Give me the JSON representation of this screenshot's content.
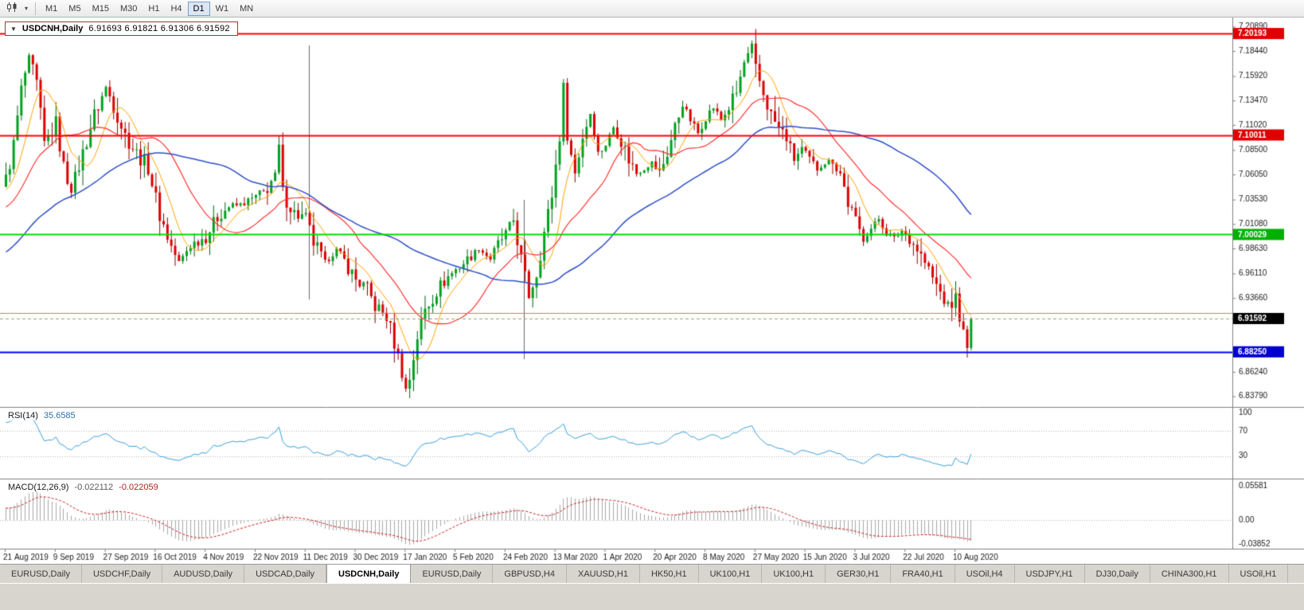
{
  "toolbar": {
    "chart_type_icon": "candlestick-chart-icon",
    "dropdown_caret": "▾",
    "timeframes": [
      "M1",
      "M5",
      "M15",
      "M30",
      "H1",
      "H4",
      "D1",
      "W1",
      "MN"
    ],
    "active_timeframe": "D1"
  },
  "symbol_box": {
    "caret": "▼",
    "title": "USDCNH,Daily",
    "ohlc": "6.91693 6.91821 6.91306 6.91592"
  },
  "rsi": {
    "label": "RSI(14)",
    "value": "35.6585",
    "period": 14,
    "line_color": "#3AA0DC",
    "level_labels": [
      "100",
      "70",
      "30"
    ],
    "levels": [
      70,
      30
    ],
    "range": [
      0,
      100
    ]
  },
  "macd": {
    "label": "MACD(12,26,9)",
    "value_main": "-0.022112",
    "value_signal": "-0.022059",
    "fast": 12,
    "slow": 26,
    "signal": 9,
    "histogram_color": "#A8A8A8",
    "signal_color": "#CC2222",
    "scale": {
      "top": "0.05581",
      "zero": "0.00",
      "bottom": "-0.03852",
      "max": 0.05581,
      "min": -0.03852
    }
  },
  "time_axis": {
    "labels": [
      "21 Aug 2019",
      "9 Sep 2019",
      "27 Sep 2019",
      "16 Oct 2019",
      "4 Nov 2019",
      "22 Nov 2019",
      "11 Dec 2019",
      "30 Dec 2019",
      "17 Jan 2020",
      "5 Feb 2020",
      "24 Feb 2020",
      "13 Mar 2020",
      "1 Apr 2020",
      "20 Apr 2020",
      "8 May 2020",
      "27 May 2020",
      "15 Jun 2020",
      "3 Jul 2020",
      "22 Jul 2020",
      "10 Aug 2020"
    ],
    "candles_per_label": 13
  },
  "tabs": {
    "items": [
      "EURUSD,Daily",
      "USDCHF,Daily",
      "AUDUSD,Daily",
      "USDCAD,Daily",
      "USDCNH,Daily",
      "EURUSD,Daily",
      "GBPUSD,H4",
      "XAUUSD,H1",
      "HK50,H1",
      "UK100,H1",
      "UK100,H1",
      "GER30,H1",
      "FRA40,H1",
      "USOil,H4",
      "USDJPY,H1",
      "DJ30,Daily",
      "CHINA300,H1",
      "USOil,H1"
    ],
    "active_index": 4
  },
  "chart_data": {
    "type": "candlestick",
    "symbol": "USDCNH",
    "timeframe": "Daily",
    "ohlc_display": {
      "open": "6.91693",
      "high": "6.91821",
      "low": "6.91306",
      "close": "6.91592"
    },
    "price_scale": {
      "min": 6.828,
      "max": 7.218,
      "ticks": [
        "7.20890",
        "7.18440",
        "7.15920",
        "7.13470",
        "7.11020",
        "7.08500",
        "7.06050",
        "7.03530",
        "7.01080",
        "6.98630",
        "6.96110",
        "6.93660",
        "6.86240",
        "6.83790"
      ]
    },
    "hlines": [
      {
        "price": 7.20193,
        "color": "#FF0000",
        "width": 2,
        "badge": "7.20193",
        "badge_bg": "#E00000"
      },
      {
        "price": 7.10011,
        "color": "#FF0000",
        "width": 2,
        "badge": "7.10011",
        "badge_bg": "#E00000"
      },
      {
        "price": 7.00029,
        "color": "#00DD00",
        "width": 2,
        "badge": "7.00029",
        "badge_bg": "#00B000"
      },
      {
        "price": 6.9216,
        "color": "#C8873C",
        "width": 1,
        "badge": null,
        "badge_bg": null
      },
      {
        "price": 6.8825,
        "color": "#0000FF",
        "width": 2,
        "badge": "6.88250",
        "badge_bg": "#0000D0"
      }
    ],
    "current_price": {
      "value": 6.91592,
      "badge": "6.91592",
      "badge_bg": "#000000"
    },
    "vlines": [
      {
        "index": 79,
        "from": 7.19,
        "to": 6.935
      },
      {
        "index": 135,
        "from": 7.035,
        "to": 6.875
      }
    ],
    "up_color": "#00A21E",
    "up_border": "#006614",
    "down_color": "#DD0000",
    "down_border": "#8E0000",
    "moving_averages": [
      {
        "period": 8,
        "color": "#FFA500",
        "width": 1
      },
      {
        "period": 21,
        "color": "#FF3333",
        "width": 1.2
      },
      {
        "period": 55,
        "color": "#2E4FC8",
        "width": 1.5
      }
    ],
    "candles": {
      "count": 252,
      "prehistory": 60,
      "anchors": [
        [
          -60,
          6.885
        ],
        [
          -40,
          6.95
        ],
        [
          -20,
          7.005
        ],
        [
          -8,
          7.03
        ],
        [
          0,
          7.055
        ],
        [
          2,
          7.09
        ],
        [
          4,
          7.145
        ],
        [
          6,
          7.178
        ],
        [
          8,
          7.15
        ],
        [
          10,
          7.09
        ],
        [
          13,
          7.112
        ],
        [
          15,
          7.068
        ],
        [
          17,
          7.045
        ],
        [
          20,
          7.082
        ],
        [
          23,
          7.12
        ],
        [
          26,
          7.148
        ],
        [
          28,
          7.13
        ],
        [
          31,
          7.1
        ],
        [
          34,
          7.082
        ],
        [
          37,
          7.068
        ],
        [
          40,
          7.02
        ],
        [
          43,
          6.988
        ],
        [
          45,
          6.972
        ],
        [
          48,
          6.99
        ],
        [
          52,
          6.998
        ],
        [
          55,
          7.018
        ],
        [
          58,
          7.028
        ],
        [
          61,
          7.03
        ],
        [
          64,
          7.036
        ],
        [
          67,
          7.042
        ],
        [
          70,
          7.06
        ],
        [
          71,
          7.088
        ],
        [
          72,
          7.042
        ],
        [
          75,
          7.022
        ],
        [
          78,
          7.015
        ],
        [
          80,
          6.992
        ],
        [
          83,
          6.972
        ],
        [
          86,
          6.985
        ],
        [
          89,
          6.968
        ],
        [
          91,
          6.955
        ],
        [
          94,
          6.945
        ],
        [
          96,
          6.928
        ],
        [
          99,
          6.918
        ],
        [
          101,
          6.892
        ],
        [
          103,
          6.862
        ],
        [
          104,
          6.845
        ],
        [
          105,
          6.856
        ],
        [
          107,
          6.898
        ],
        [
          109,
          6.925
        ],
        [
          112,
          6.944
        ],
        [
          115,
          6.958
        ],
        [
          117,
          6.965
        ],
        [
          120,
          6.975
        ],
        [
          123,
          6.986
        ],
        [
          126,
          6.976
        ],
        [
          128,
          6.99
        ],
        [
          130,
          7.002
        ],
        [
          132,
          7.015
        ],
        [
          134,
          6.975
        ],
        [
          136,
          6.938
        ],
        [
          138,
          6.962
        ],
        [
          140,
          7.002
        ],
        [
          142,
          7.04
        ],
        [
          144,
          7.1
        ],
        [
          145,
          7.148
        ],
        [
          146,
          7.098
        ],
        [
          148,
          7.062
        ],
        [
          150,
          7.098
        ],
        [
          152,
          7.122
        ],
        [
          154,
          7.082
        ],
        [
          156,
          7.09
        ],
        [
          158,
          7.108
        ],
        [
          160,
          7.094
        ],
        [
          162,
          7.076
        ],
        [
          164,
          7.062
        ],
        [
          166,
          7.066
        ],
        [
          168,
          7.072
        ],
        [
          170,
          7.062
        ],
        [
          172,
          7.082
        ],
        [
          174,
          7.108
        ],
        [
          176,
          7.132
        ],
        [
          178,
          7.115
        ],
        [
          180,
          7.102
        ],
        [
          182,
          7.118
        ],
        [
          184,
          7.128
        ],
        [
          186,
          7.115
        ],
        [
          188,
          7.128
        ],
        [
          190,
          7.142
        ],
        [
          192,
          7.172
        ],
        [
          194,
          7.188
        ],
        [
          195,
          7.165
        ],
        [
          197,
          7.142
        ],
        [
          199,
          7.12
        ],
        [
          201,
          7.106
        ],
        [
          203,
          7.098
        ],
        [
          205,
          7.076
        ],
        [
          207,
          7.086
        ],
        [
          209,
          7.076
        ],
        [
          211,
          7.066
        ],
        [
          213,
          7.072
        ],
        [
          215,
          7.076
        ],
        [
          217,
          7.062
        ],
        [
          219,
          7.032
        ],
        [
          221,
          7.012
        ],
        [
          223,
          6.996
        ],
        [
          225,
          7.006
        ],
        [
          227,
          7.016
        ],
        [
          229,
          7.002
        ],
        [
          231,
          6.996
        ],
        [
          233,
          7.004
        ],
        [
          235,
          6.996
        ],
        [
          237,
          6.986
        ],
        [
          239,
          6.972
        ],
        [
          241,
          6.956
        ],
        [
          243,
          6.942
        ],
        [
          245,
          6.926
        ],
        [
          247,
          6.936
        ],
        [
          248,
          6.916
        ],
        [
          249,
          6.902
        ],
        [
          250,
          6.884
        ],
        [
          251,
          6.916
        ]
      ]
    }
  }
}
